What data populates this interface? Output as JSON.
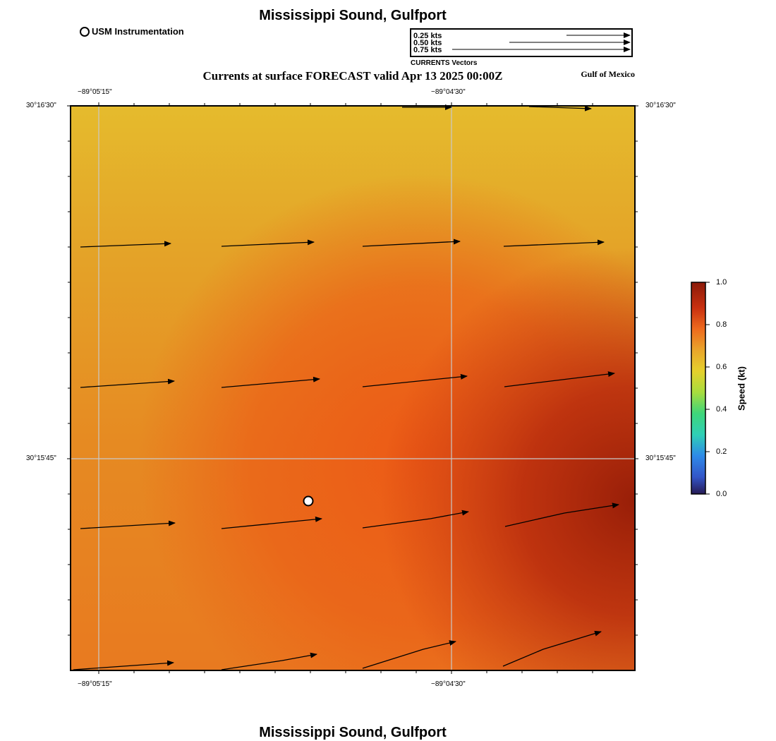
{
  "header": {
    "title": "Mississippi Sound, Gulfport",
    "subtitle": "Currents at surface FORECAST valid Apr 13 2025 00:00Z",
    "region": "Gulf of Mexico",
    "marker_legend": "USM Instrumentation"
  },
  "footer": {
    "title": "Mississippi Sound, Gulfport"
  },
  "vector_legend": {
    "title": "CURRENTS Vectors",
    "rows": [
      "0.25 kts",
      "0.50 kts",
      "0.75 kts"
    ],
    "speeds_kt": [
      0.25,
      0.5,
      0.75
    ]
  },
  "axes": {
    "lon_labels": [
      "−89°05'15\"",
      "−89°04'30\""
    ],
    "lat_labels": [
      "30°16'30\"",
      "30°15'45\""
    ]
  },
  "colorbar": {
    "label": "Speed (kt)",
    "ticks": [
      "1.0",
      "0.8",
      "0.6",
      "0.4",
      "0.2",
      "0.0"
    ],
    "range": [
      0,
      1
    ],
    "stops": [
      "#8b1a09",
      "#c83010",
      "#ee6a1e",
      "#e9a52b",
      "#e5d02c",
      "#7ad64a",
      "#2fcfa6",
      "#2e8ae8",
      "#3355c8",
      "#261a55"
    ]
  },
  "colors": {
    "field_light": "#e5b82c",
    "field_mid": "#e48a24",
    "field_orange": "#eb5a17",
    "field_dark": "#a5240c",
    "grid": "#c9c9c9",
    "frame": "#000000"
  }
}
